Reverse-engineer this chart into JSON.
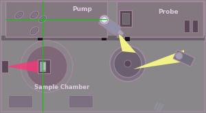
{
  "fig_width": 3.0,
  "fig_height": 1.65,
  "dpi": 100,
  "pump_label": "Pump",
  "probe_label": "Probe",
  "sample_label": "Sample Chamber",
  "bg": "#8a878a",
  "panel_bg": "#8a878a",
  "top_box_bg": "#847880",
  "border": "#a888a0",
  "dark": "#5a4858",
  "separator": "#6a626a",
  "black": "#1a1218",
  "yellow": "#ffff88",
  "pink": "#ff3377",
  "green": "#00cc00",
  "probe_box_bg": "#847880",
  "mirror_color": "#706070",
  "pump_body": "#9090a8",
  "pump_lens": "#c0c0d0",
  "camera_body": "#707080",
  "mirror_disc": "#9090a0",
  "label_color": "#ddccdd"
}
